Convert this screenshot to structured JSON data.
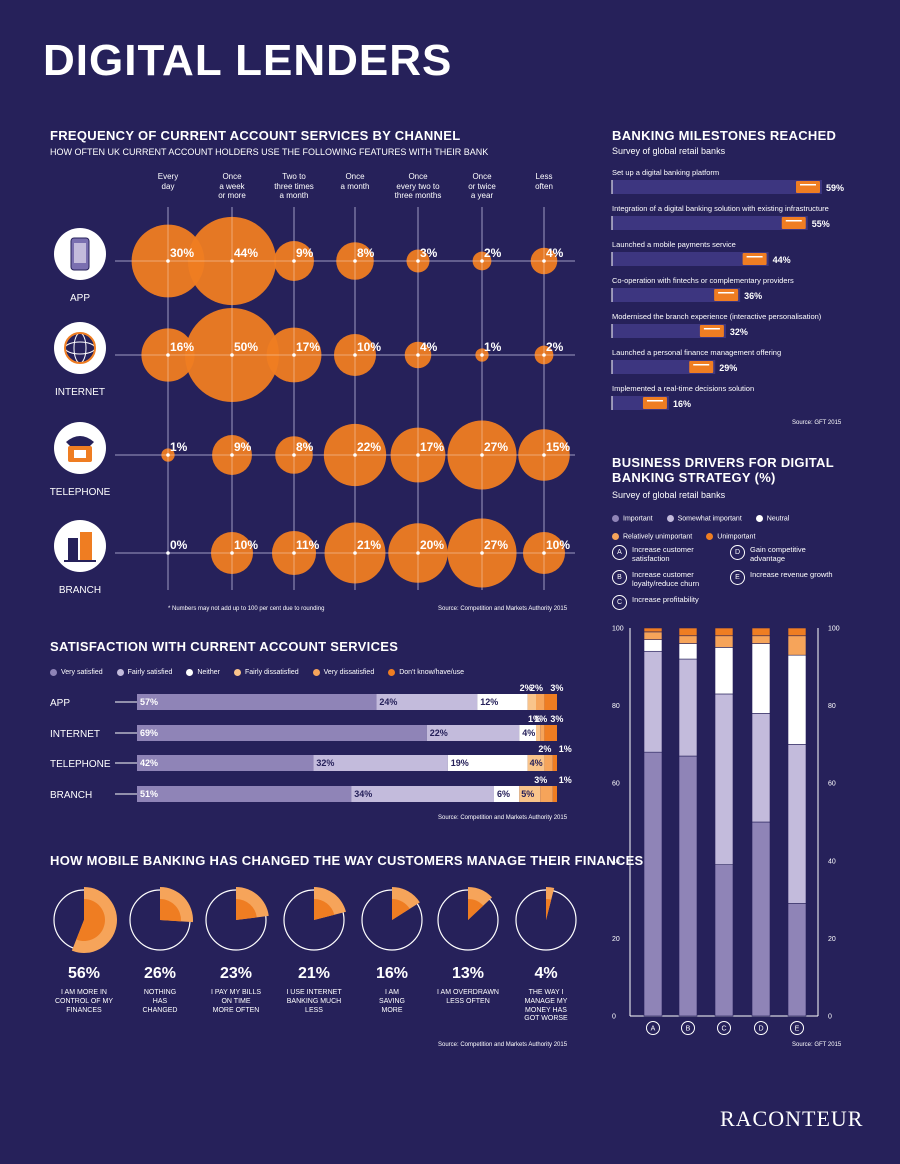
{
  "title": "DIGITAL LENDERS",
  "freq": {
    "title": "FREQUENCY OF CURRENT ACCOUNT SERVICES BY CHANNEL",
    "subtitle": "HOW OFTEN UK CURRENT ACCOUNT HOLDERS USE THE FOLLOWING FEATURES WITH THEIR BANK",
    "columns": [
      "Every\nday",
      "Once\na week\nor more",
      "Two to\nthree times\na month",
      "Once\na month",
      "Once\nevery two to\nthree months",
      "Once\nor twice\na year",
      "Less\noften"
    ],
    "channels": [
      "APP",
      "INTERNET",
      "TELEPHONE",
      "BRANCH"
    ],
    "note": "* Numbers may not add up to 100 per cent due to rounding",
    "source": "Source: Competition and Markets Authority 2015"
  },
  "satisfaction": {
    "title": "SATISFACTION WITH CURRENT ACCOUNT SERVICES",
    "source": "Source: Competition and Markets Authority 2015"
  },
  "mobile": {
    "title": "HOW MOBILE BANKING HAS CHANGED THE WAY CUSTOMERS MANAGE THEIR FINANCES",
    "items": [
      {
        "pct": "56%",
        "caption": "I AM MORE IN\nCONTROL OF MY\nFINANCES"
      },
      {
        "pct": "26%",
        "caption": "NOTHING\nHAS\nCHANGED"
      },
      {
        "pct": "23%",
        "caption": "I PAY MY BILLS\nON TIME\nMORE OFTEN"
      },
      {
        "pct": "21%",
        "caption": "I USE INTERNET\nBANKING MUCH\nLESS"
      },
      {
        "pct": "16%",
        "caption": "I AM\nSAVING\nMORE"
      },
      {
        "pct": "13%",
        "caption": "I AM OVERDRAWN\nLESS OFTEN"
      },
      {
        "pct": "4%",
        "caption": "THE WAY I\nMANAGE MY\nMONEY HAS\nGOT WORSE"
      }
    ],
    "source": "Source: Competition and Markets Authority 2015"
  },
  "milestones": {
    "title": "BANKING MILESTONES REACHED",
    "subtitle": "Survey of global retail banks",
    "source": "Source: GFT 2015"
  },
  "drivers": {
    "title": "BUSINESS DRIVERS FOR DIGITAL BANKING STRATEGY (%)",
    "subtitle": "Survey of global retail banks",
    "keys": [
      {
        "letter": "A",
        "text": "Increase customer\nsatisfaction"
      },
      {
        "letter": "D",
        "text": "Gain competitive\nadvantage"
      },
      {
        "letter": "B",
        "text": "Increase customer\nloyalty/reduce churn"
      },
      {
        "letter": "E",
        "text": "Increase revenue growth"
      },
      {
        "letter": "C",
        "text": "Increase profitability"
      }
    ],
    "source": "Source: GFT 2015"
  },
  "logo": "RACONTEUR",
  "colors": {
    "bg": "#26215a",
    "orange": "#ef7d22",
    "orange_light": "#f6a45a",
    "orange_pale": "#f9c48b",
    "purple_dark": "#8f84b7",
    "purple_light": "#c3bbdc",
    "white": "#ffffff",
    "milestone_bar": "#3d3680"
  },
  "chart_data": [
    {
      "type": "scatter",
      "title": "FREQUENCY OF CURRENT ACCOUNT SERVICES BY CHANNEL",
      "categories": [
        "Every day",
        "Once a week or more",
        "Two to three times a month",
        "Once a month",
        "Once every two to three months",
        "Once or twice a year",
        "Less often"
      ],
      "series": [
        {
          "name": "APP",
          "values": [
            30,
            44,
            9,
            8,
            3,
            2,
            4
          ]
        },
        {
          "name": "INTERNET",
          "values": [
            16,
            50,
            17,
            10,
            4,
            1,
            2
          ]
        },
        {
          "name": "TELEPHONE",
          "values": [
            1,
            9,
            8,
            22,
            17,
            27,
            15
          ]
        },
        {
          "name": "BRANCH",
          "values": [
            0,
            10,
            11,
            21,
            20,
            27,
            10
          ]
        }
      ]
    },
    {
      "type": "bar",
      "stacked": true,
      "orientation": "horizontal",
      "title": "SATISFACTION WITH CURRENT ACCOUNT SERVICES",
      "categories": [
        "APP",
        "INTERNET",
        "TELEPHONE",
        "BRANCH"
      ],
      "series": [
        {
          "name": "Very satisfied",
          "values": [
            57,
            69,
            42,
            51
          ],
          "color": "#8f84b7"
        },
        {
          "name": "Fairly satisfied",
          "values": [
            24,
            22,
            32,
            34
          ],
          "color": "#c3bbdc"
        },
        {
          "name": "Neither",
          "values": [
            12,
            4,
            19,
            6
          ],
          "color": "#ffffff"
        },
        {
          "name": "Fairly dissatisfied",
          "values": [
            2,
            1,
            4,
            5
          ],
          "color": "#f9c48b"
        },
        {
          "name": "Very dissatisfied",
          "values": [
            2,
            1,
            2,
            3
          ],
          "color": "#f6a45a"
        },
        {
          "name": "Don't know/have/use",
          "values": [
            3,
            3,
            1,
            1
          ],
          "color": "#ef7d22"
        }
      ]
    },
    {
      "type": "pie",
      "title": "HOW MOBILE BANKING HAS CHANGED THE WAY CUSTOMERS MANAGE THEIR FINANCES",
      "values": [
        56,
        26,
        23,
        21,
        16,
        13,
        4
      ]
    },
    {
      "type": "bar",
      "orientation": "horizontal",
      "title": "BANKING MILESTONES REACHED",
      "categories": [
        "Set up a digital banking platform",
        "Integration of a digital banking solution with existing infrastructure",
        "Launched a mobile payments service",
        "Co-operation with fintechs or complementary providers",
        "Modernised the branch experience (interactive personalisation)",
        "Launched a personal finance management offering",
        "Implemented a real-time decisions solution"
      ],
      "values": [
        59,
        55,
        44,
        36,
        32,
        29,
        16
      ]
    },
    {
      "type": "bar",
      "stacked": true,
      "title": "BUSINESS DRIVERS FOR DIGITAL BANKING STRATEGY (%)",
      "categories": [
        "A",
        "B",
        "C",
        "D",
        "E"
      ],
      "ylim": [
        0,
        100
      ],
      "yticks": [
        0,
        20,
        40,
        60,
        80,
        100
      ],
      "series": [
        {
          "name": "Important",
          "values": [
            68,
            67,
            39,
            50,
            29
          ],
          "color": "#8f84b7"
        },
        {
          "name": "Somewhat important",
          "values": [
            26,
            25,
            44,
            28,
            41
          ],
          "color": "#c3bbdc"
        },
        {
          "name": "Neutral",
          "values": [
            3,
            4,
            12,
            18,
            23
          ],
          "color": "#ffffff"
        },
        {
          "name": "Relatively unimportant",
          "values": [
            2,
            2,
            3,
            2,
            5
          ],
          "color": "#f6a45a"
        },
        {
          "name": "Unimportant",
          "values": [
            1,
            2,
            2,
            2,
            2
          ],
          "color": "#ef7d22"
        }
      ]
    }
  ]
}
